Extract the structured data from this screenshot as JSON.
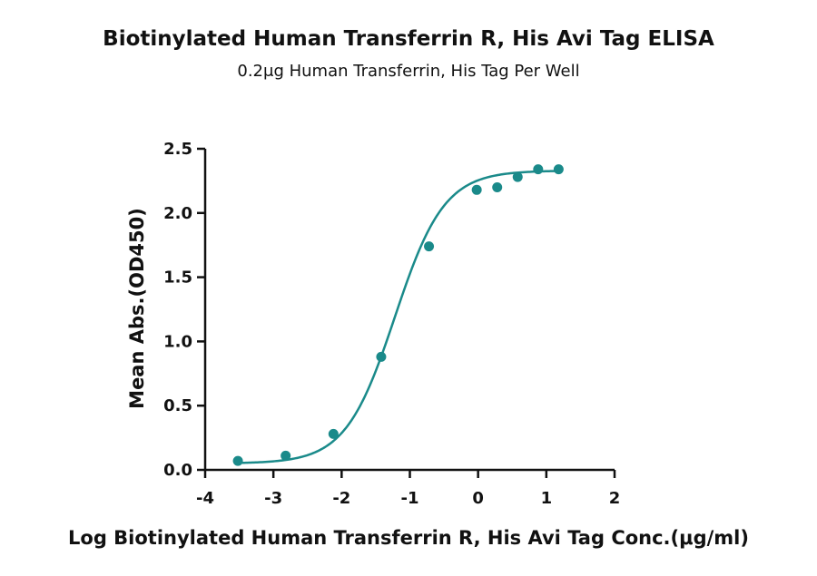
{
  "chart_data": {
    "type": "scatter",
    "title": "Biotinylated Human Transferrin R, His Avi Tag ELISA",
    "subtitle": "0.2μg Human Transferrin, His Tag Per Well",
    "xlabel": "Log Biotinylated Human Transferrin R, His Avi Tag Conc.(μg/ml)",
    "ylabel": "Mean Abs.(OD450)",
    "xlim": [
      -4,
      2
    ],
    "ylim": [
      0,
      2.5
    ],
    "x_ticks": [
      -4,
      -3,
      -2,
      -1,
      0,
      1,
      2
    ],
    "y_ticks": [
      0.0,
      0.5,
      1.0,
      1.5,
      2.0,
      2.5
    ],
    "x_tick_labels": [
      "-4",
      "-3",
      "-2",
      "-1",
      "0",
      "1",
      "2"
    ],
    "y_tick_labels": [
      "0.0",
      "0.5",
      "1.0",
      "1.5",
      "2.0",
      "2.5"
    ],
    "series_color": "#1a8a8a",
    "points": [
      {
        "x": -3.52,
        "y": 0.07
      },
      {
        "x": -2.82,
        "y": 0.11
      },
      {
        "x": -2.12,
        "y": 0.28
      },
      {
        "x": -1.42,
        "y": 0.88
      },
      {
        "x": -0.72,
        "y": 1.74
      },
      {
        "x": -0.02,
        "y": 2.18
      },
      {
        "x": 0.28,
        "y": 2.2
      },
      {
        "x": 0.58,
        "y": 2.28
      },
      {
        "x": 0.88,
        "y": 2.34
      },
      {
        "x": 1.18,
        "y": 2.34
      }
    ],
    "fit_curve": {
      "bottom": 0.05,
      "top": 2.33,
      "logEC50": -1.22,
      "hill": 1.2
    },
    "grid": false,
    "legend": "none"
  }
}
